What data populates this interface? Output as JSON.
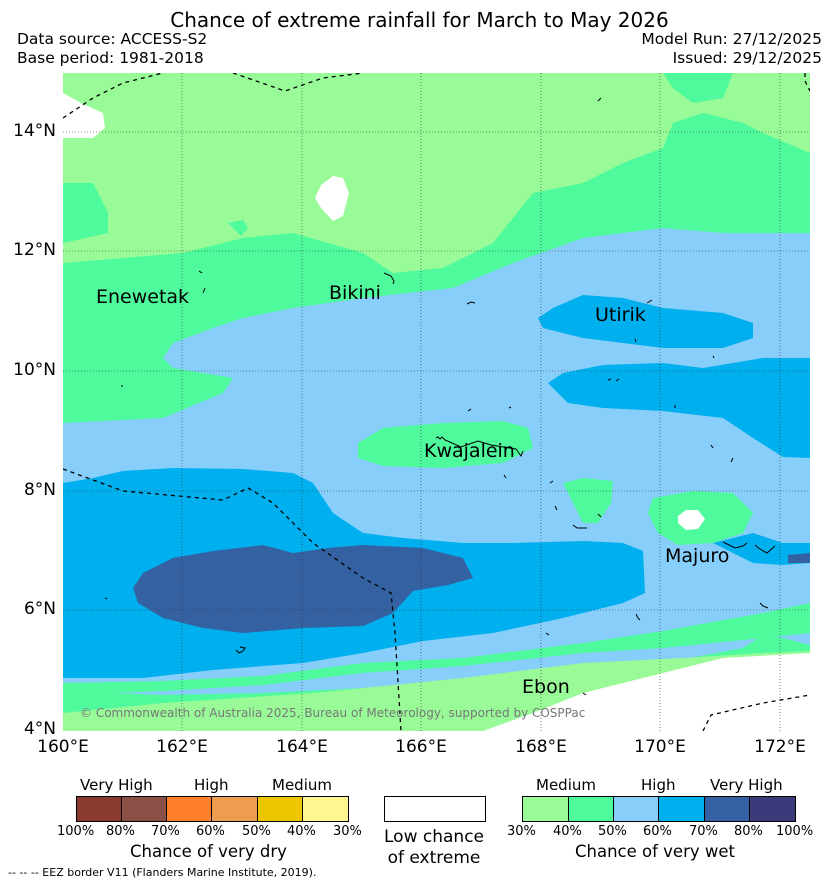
{
  "title": "Chance of extreme rainfall for March to May 2026",
  "data_source": "Data source: ACCESS-S2",
  "base_period": "Base period: 1981-2018",
  "model_run": "Model Run: 27/12/2025",
  "issued": "Issued: 29/12/2025",
  "map": {
    "lat_labels": [
      "14°N",
      "12°N",
      "10°N",
      "8°N",
      "6°N",
      "4°N"
    ],
    "lon_labels": [
      "160°E",
      "162°E",
      "164°E",
      "166°E",
      "168°E",
      "170°E",
      "172°E"
    ],
    "places": {
      "enewetak": "Enewetak",
      "bikini": "Bikini",
      "utirik": "Utirik",
      "kwajalein": "Kwajalein",
      "majuro": "Majuro",
      "ebon": "Ebon"
    },
    "copyright": "© Commonwealth of Australia 2025, Bureau of Meteorology, supported by COSPPac",
    "colors": {
      "wet30": "#98fb98",
      "wet40": "#4efa9c",
      "wet50": "#87cefa",
      "wet60": "#00b0ee",
      "wet70": "#3461a2",
      "wet80": "#3b3b7c",
      "low": "#ffffff"
    }
  },
  "legend": {
    "dry": {
      "categories": [
        "Very High",
        "High",
        "Medium"
      ],
      "ticks": [
        "100%",
        "80%",
        "70%",
        "60%",
        "50%",
        "40%",
        "30%"
      ],
      "colors": [
        "#8b3a32",
        "#8b5045",
        "#ff7f2a",
        "#ee9c4e",
        "#eec600",
        "#fff68f"
      ],
      "title": "Chance of very dry"
    },
    "low": {
      "line1": "Low chance",
      "line2": "of extreme"
    },
    "wet": {
      "categories": [
        "Medium",
        "High",
        "Very High"
      ],
      "ticks": [
        "30%",
        "40%",
        "50%",
        "60%",
        "70%",
        "80%",
        "100%"
      ],
      "colors": [
        "#98fb98",
        "#4efa9c",
        "#87cefa",
        "#00b0ee",
        "#3461a2",
        "#3b3b7c"
      ],
      "title": "Chance of very wet"
    }
  },
  "eez_note": "--  --  -- EEZ border V11 (Flanders Marine Institute, 2019)."
}
